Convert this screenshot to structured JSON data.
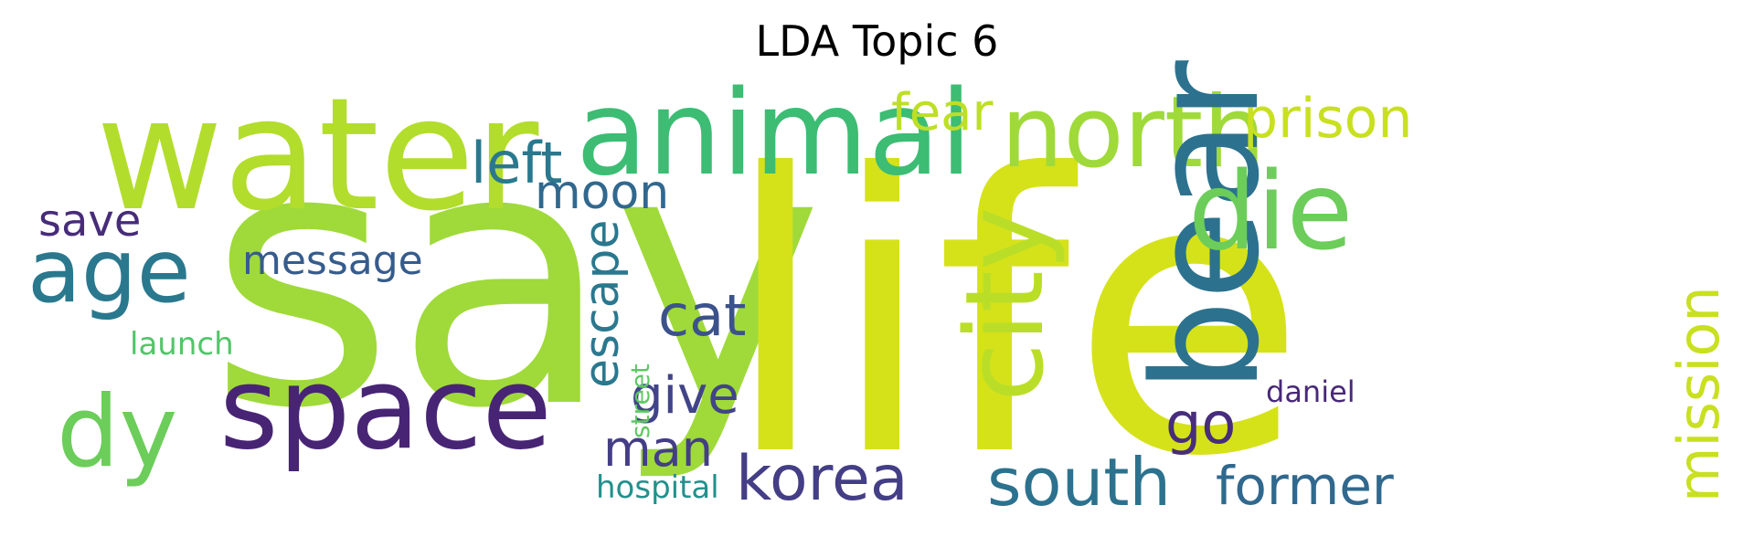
{
  "title": "LDA Topic 6",
  "chart_data": {
    "type": "wordcloud",
    "title": "LDA Topic 6",
    "colormap": "viridis",
    "background": "#ffffff",
    "words": [
      {
        "text": "say",
        "color": "#9fda3a"
      },
      {
        "text": "life",
        "color": "#d5e21a"
      },
      {
        "text": "water",
        "color": "#b2dd2c"
      },
      {
        "text": "animal",
        "color": "#3dbc74"
      },
      {
        "text": "north",
        "color": "#9fda3a"
      },
      {
        "text": "bear",
        "color": "#2c728e"
      },
      {
        "text": "space",
        "color": "#482475"
      },
      {
        "text": "die",
        "color": "#6ccd5a"
      },
      {
        "text": "city",
        "color": "#bade28"
      },
      {
        "text": "age",
        "color": "#2a788e"
      },
      {
        "text": "dy",
        "color": "#6ccd5a"
      },
      {
        "text": "korea",
        "color": "#433e85"
      },
      {
        "text": "south",
        "color": "#2c728e"
      },
      {
        "text": "former",
        "color": "#31688e"
      },
      {
        "text": "prison",
        "color": "#c8e020"
      },
      {
        "text": "fear",
        "color": "#bddf26"
      },
      {
        "text": "mission",
        "color": "#c8e020"
      },
      {
        "text": "left",
        "color": "#2a788e"
      },
      {
        "text": "moon",
        "color": "#31688e"
      },
      {
        "text": "escape",
        "color": "#2a788e"
      },
      {
        "text": "cat",
        "color": "#3b528b"
      },
      {
        "text": "give",
        "color": "#414487"
      },
      {
        "text": "man",
        "color": "#433e85"
      },
      {
        "text": "go",
        "color": "#472d7b"
      },
      {
        "text": "save",
        "color": "#472c7a"
      },
      {
        "text": "message",
        "color": "#365c8d"
      },
      {
        "text": "launch",
        "color": "#52c569"
      },
      {
        "text": "street",
        "color": "#5ec962"
      },
      {
        "text": "hospital",
        "color": "#21918c"
      },
      {
        "text": "daniel",
        "color": "#482878"
      }
    ]
  }
}
